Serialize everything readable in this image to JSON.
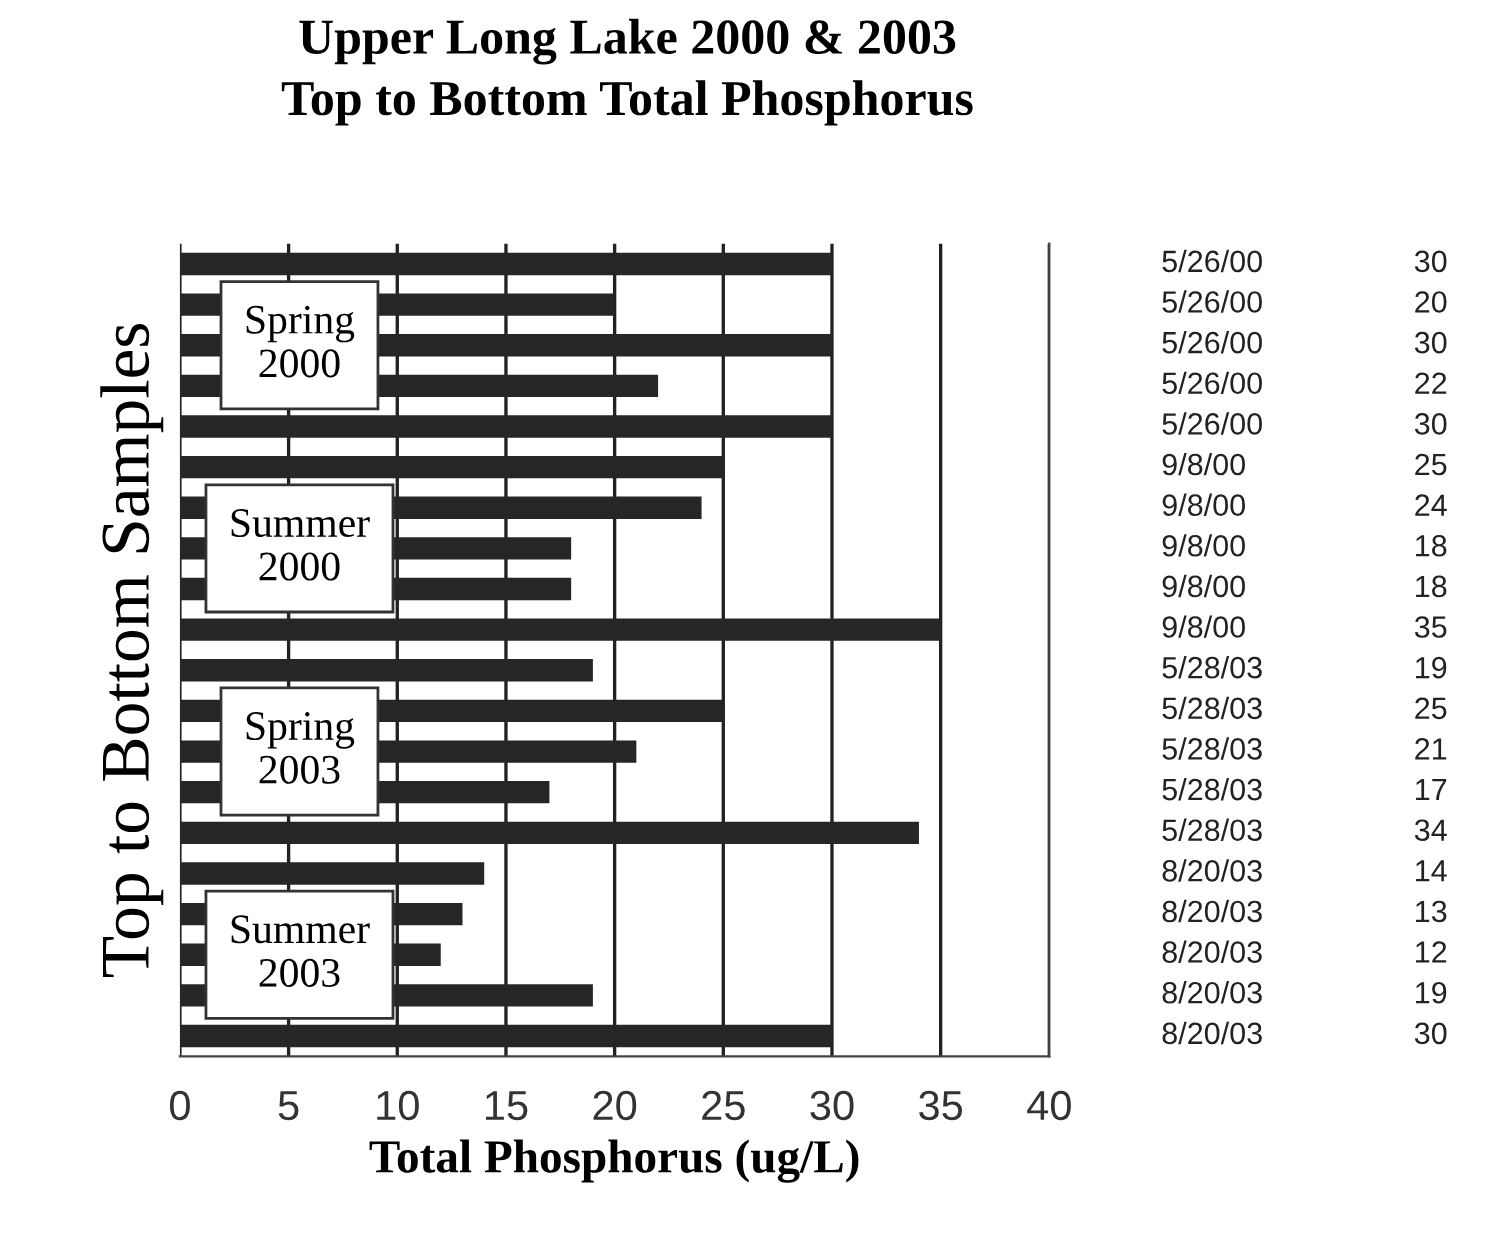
{
  "chart_data": {
    "type": "bar",
    "orientation": "horizontal",
    "title": "Upper Long Lake 2000 & 2003\nTop to Bottom Total Phosphorus",
    "xlabel": "Total Phosphorus (ug/L)",
    "ylabel": "Top to Bottom Samples",
    "categories": [
      "5/26/00",
      "5/26/00",
      "5/26/00",
      "5/26/00",
      "5/26/00",
      "9/8/00",
      "9/8/00",
      "9/8/00",
      "9/8/00",
      "9/8/00",
      "5/28/03",
      "5/28/03",
      "5/28/03",
      "5/28/03",
      "5/28/03",
      "8/20/03",
      "8/20/03",
      "8/20/03",
      "8/20/03",
      "8/20/03"
    ],
    "values": [
      30,
      20,
      30,
      22,
      30,
      25,
      24,
      18,
      18,
      35,
      19,
      25,
      21,
      17,
      34,
      14,
      13,
      12,
      19,
      30
    ],
    "color": "#262626",
    "data_labels": true,
    "xlim": [
      0,
      40
    ],
    "xticks": [
      0,
      5,
      10,
      15,
      20,
      25,
      30,
      35,
      40
    ],
    "grid": "x",
    "tick_labels": "x",
    "annotations": [
      "Spring\n2000",
      "Summer\n2000",
      "Spring\n2003",
      "Summer\n2003"
    ]
  }
}
